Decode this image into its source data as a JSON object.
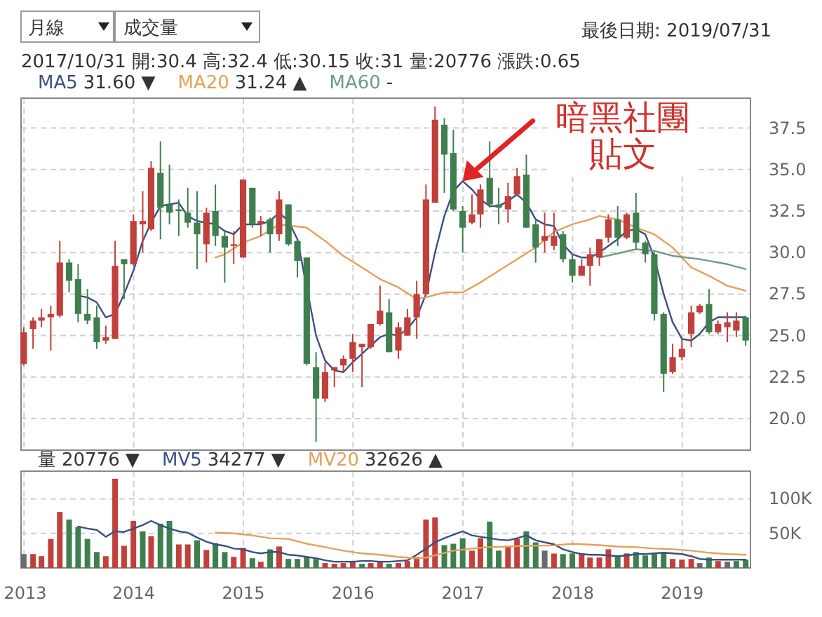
{
  "chart_data": [
    {
      "type": "candlestick",
      "legend": "top",
      "grid": true,
      "tick_labels": "y",
      "xlim": [
        "2012-12-22",
        "2019-08-16"
      ],
      "ylim": [
        18.1,
        39.3
      ],
      "xticks": [
        "2013",
        "2014",
        "2015",
        "2016",
        "2017",
        "2018",
        "2019"
      ],
      "yticks": [
        {
          "value": 20,
          "label": "20.0"
        },
        22.5,
        {
          "value": 25,
          "label": "25.0"
        },
        27.5,
        {
          "value": 30,
          "label": "30.0"
        },
        32.5,
        {
          "value": 35,
          "label": "35.0"
        },
        37.5
      ],
      "x": [
        "2012-12-31",
        "2013-01-31",
        "2013-02-28",
        "2013-03-31",
        "2013-04-30",
        "2013-05-31",
        "2013-06-30",
        "2013-07-31",
        "2013-08-31",
        "2013-09-30",
        "2013-10-31",
        "2013-11-30",
        "2013-12-31",
        "2014-01-31",
        "2014-02-28",
        "2014-03-31",
        "2014-04-30",
        "2014-05-31",
        "2014-06-30",
        "2014-07-31",
        "2014-08-31",
        "2014-09-30",
        "2014-10-31",
        "2014-11-30",
        "2014-12-31",
        "2015-01-31",
        "2015-02-28",
        "2015-03-31",
        "2015-04-30",
        "2015-05-31",
        "2015-06-30",
        "2015-07-31",
        "2015-08-31",
        "2015-09-30",
        "2015-10-31",
        "2015-11-30",
        "2015-12-31",
        "2016-01-31",
        "2016-02-29",
        "2016-03-31",
        "2016-04-30",
        "2016-05-31",
        "2016-06-30",
        "2016-07-31",
        "2016-08-31",
        "2016-09-30",
        "2016-10-31",
        "2016-11-30",
        "2016-12-31",
        "2017-01-31",
        "2017-02-28",
        "2017-03-31",
        "2017-04-30",
        "2017-05-31",
        "2017-06-30",
        "2017-07-31",
        "2017-08-31",
        "2017-09-30",
        "2017-10-31",
        "2017-11-30",
        "2017-12-31",
        "2018-01-31",
        "2018-02-28",
        "2018-03-31",
        "2018-04-30",
        "2018-05-31",
        "2018-06-30",
        "2018-07-31",
        "2018-08-31",
        "2018-09-30",
        "2018-10-31",
        "2018-11-30",
        "2018-12-31",
        "2019-01-31",
        "2019-02-28",
        "2019-03-31",
        "2019-04-30",
        "2019-05-31",
        "2019-06-30",
        "2019-07-31"
      ],
      "ohlc": [
        [
          23.3,
          25.5,
          23.2,
          25.2
        ],
        [
          25.4,
          26.1,
          24.2,
          25.9
        ],
        [
          25.9,
          26.6,
          25.5,
          26.1
        ],
        [
          26.1,
          26.8,
          24.1,
          26.3
        ],
        [
          26.2,
          30.7,
          26.1,
          29.4
        ],
        [
          29.4,
          29.6,
          27.6,
          28.3
        ],
        [
          28.4,
          29.3,
          25.8,
          26.3
        ],
        [
          26.3,
          27.8,
          25.7,
          25.9
        ],
        [
          26.1,
          26.8,
          24.2,
          24.6
        ],
        [
          24.7,
          25.6,
          24.5,
          24.9
        ],
        [
          24.8,
          30.7,
          24.8,
          29.2
        ],
        [
          29.6,
          29.6,
          27.2,
          29.3
        ],
        [
          29.3,
          32.3,
          29.2,
          31.9
        ],
        [
          31.7,
          33.7,
          30.0,
          31.9
        ],
        [
          31.4,
          35.5,
          31.3,
          35.1
        ],
        [
          34.8,
          36.7,
          30.8,
          32.7
        ],
        [
          32.9,
          35.3,
          31.7,
          32.4
        ],
        [
          32.6,
          33.2,
          31.0,
          32.5
        ],
        [
          32.4,
          33.9,
          31.5,
          31.8
        ],
        [
          31.8,
          33.7,
          29.0,
          31.1
        ],
        [
          30.5,
          32.7,
          29.4,
          32.4
        ],
        [
          32.5,
          34.1,
          30.4,
          31.0
        ],
        [
          31.0,
          31.3,
          28.2,
          30.3
        ],
        [
          30.4,
          31.3,
          29.3,
          30.5
        ],
        [
          29.7,
          34.4,
          29.7,
          34.4
        ],
        [
          33.9,
          33.9,
          31.5,
          31.7
        ],
        [
          31.7,
          32.2,
          31.0,
          31.9
        ],
        [
          32.0,
          32.1,
          30.0,
          31.1
        ],
        [
          31.1,
          33.7,
          30.7,
          33.2
        ],
        [
          32.9,
          32.9,
          30.4,
          30.5
        ],
        [
          30.7,
          30.7,
          28.5,
          29.5
        ],
        [
          29.7,
          29.7,
          23.2,
          23.3
        ],
        [
          23.1,
          24.0,
          18.6,
          21.2
        ],
        [
          21.2,
          23.4,
          21.0,
          22.8
        ],
        [
          22.9,
          23.1,
          21.9,
          23.1
        ],
        [
          23.2,
          23.8,
          22.8,
          23.6
        ],
        [
          23.6,
          25.1,
          22.8,
          24.6
        ],
        [
          24.3,
          24.5,
          21.9,
          24.5
        ],
        [
          24.3,
          25.7,
          24.2,
          25.7
        ],
        [
          25.7,
          28.0,
          25.6,
          26.5
        ],
        [
          26.4,
          27.2,
          24.0,
          24.0
        ],
        [
          24.1,
          25.8,
          23.6,
          25.5
        ],
        [
          25.0,
          26.6,
          25.0,
          26.1
        ],
        [
          26.1,
          28.3,
          24.8,
          27.5
        ],
        [
          27.5,
          34.1,
          27.5,
          33.2
        ],
        [
          33.0,
          38.8,
          33.0,
          38.0
        ],
        [
          37.7,
          38.1,
          33.6,
          35.9
        ],
        [
          36.0,
          37.4,
          32.5,
          32.6
        ],
        [
          32.5,
          32.8,
          30.0,
          31.5
        ],
        [
          31.8,
          33.5,
          31.7,
          32.3
        ],
        [
          32.3,
          34.1,
          31.5,
          33.8
        ],
        [
          34.5,
          36.7,
          32.7,
          32.9
        ],
        [
          32.9,
          33.9,
          31.7,
          32.7
        ],
        [
          32.6,
          34.2,
          31.8,
          33.4
        ],
        [
          33.5,
          35.1,
          33.4,
          34.6
        ],
        [
          34.7,
          35.9,
          31.5,
          31.5
        ],
        [
          31.7,
          32.0,
          29.4,
          30.3
        ],
        [
          30.7,
          32.4,
          30.0,
          31.0
        ],
        [
          30.4,
          32.4,
          30.15,
          31
        ],
        [
          31.1,
          31.3,
          29.4,
          29.6
        ],
        [
          29.6,
          29.9,
          28.2,
          28.6
        ],
        [
          28.6,
          29.6,
          28.6,
          29.2
        ],
        [
          29.2,
          30.3,
          28.0,
          29.9
        ],
        [
          29.7,
          30.8,
          29.2,
          30.8
        ],
        [
          30.9,
          32.3,
          30.6,
          32.0
        ],
        [
          32.0,
          32.8,
          30.4,
          30.9
        ],
        [
          30.9,
          32.4,
          30.8,
          32.3
        ],
        [
          32.4,
          33.6,
          30.2,
          30.6
        ],
        [
          30.6,
          30.7,
          29.4,
          29.9
        ],
        [
          29.9,
          30.0,
          25.9,
          26.3
        ],
        [
          26.3,
          26.4,
          21.6,
          22.7
        ],
        [
          22.8,
          24.5,
          22.7,
          23.7
        ],
        [
          23.7,
          24.8,
          23.5,
          24.2
        ],
        [
          25.1,
          26.8,
          24.3,
          26.4
        ],
        [
          26.4,
          26.9,
          26.3,
          26.8
        ],
        [
          26.9,
          27.8,
          25.1,
          25.2
        ],
        [
          25.2,
          25.9,
          25.1,
          25.7
        ],
        [
          25.5,
          26.4,
          24.6,
          25.8
        ],
        [
          25.3,
          26.4,
          24.9,
          25.9
        ],
        [
          26.1,
          26.2,
          24.4,
          24.7
        ]
      ],
      "colors": [
        "#c0403c",
        "#c0403c",
        "#c0403c",
        "#c0403c",
        "#c0403c",
        "#3f7f4f",
        "#3f7f4f",
        "#3f7f4f",
        "#3f7f4f",
        "#c0403c",
        "#c0403c",
        "#3f7f4f",
        "#c0403c",
        "#c0403c",
        "#c0403c",
        "#3f7f4f",
        "#3f7f4f",
        "#3f7f4f",
        "#3f7f4f",
        "#3f7f4f",
        "#c0403c",
        "#3f7f4f",
        "#3f7f4f",
        "#c0403c",
        "#c0403c",
        "#3f7f4f",
        "#c0403c",
        "#3f7f4f",
        "#c0403c",
        "#3f7f4f",
        "#3f7f4f",
        "#3f7f4f",
        "#3f7f4f",
        "#c0403c",
        "#c0403c",
        "#c0403c",
        "#c0403c",
        "#c0403c",
        "#c0403c",
        "#c0403c",
        "#3f7f4f",
        "#c0403c",
        "#c0403c",
        "#c0403c",
        "#c0403c",
        "#c0403c",
        "#3f7f4f",
        "#3f7f4f",
        "#3f7f4f",
        "#c0403c",
        "#c0403c",
        "#3f7f4f",
        "#3f7f4f",
        "#c0403c",
        "#c0403c",
        "#3f7f4f",
        "#3f7f4f",
        "#c0403c",
        "#c0403c",
        "#3f7f4f",
        "#3f7f4f",
        "#c0403c",
        "#c0403c",
        "#c0403c",
        "#c0403c",
        "#3f7f4f",
        "#c0403c",
        "#3f7f4f",
        "#3f7f4f",
        "#3f7f4f",
        "#3f7f4f",
        "#c0403c",
        "#c0403c",
        "#c0403c",
        "#c0403c",
        "#3f7f4f",
        "#c0403c",
        "#c0403c",
        "#c0403c",
        "#3f7f4f"
      ],
      "series": [
        {
          "name": "MA5",
          "type": "line",
          "color": "#3c5080",
          "x": [
            "2013-06-30",
            "2013-07-31",
            "2013-08-31",
            "2013-09-30",
            "2013-10-31",
            "2013-11-30",
            "2013-12-31",
            "2014-01-31",
            "2014-02-28",
            "2014-03-31",
            "2014-04-30",
            "2014-05-31",
            "2014-06-30",
            "2014-07-31",
            "2014-08-31",
            "2014-09-30",
            "2014-10-31",
            "2014-11-30",
            "2014-12-31",
            "2015-01-31",
            "2015-02-28",
            "2015-03-31",
            "2015-04-30",
            "2015-05-31",
            "2015-06-30",
            "2015-08-31",
            "2015-09-30",
            "2015-10-31",
            "2015-11-30",
            "2015-12-31",
            "2016-01-31",
            "2016-02-29",
            "2016-03-31",
            "2016-04-30",
            "2016-05-31",
            "2016-06-30",
            "2016-07-31",
            "2016-08-31",
            "2016-09-30",
            "2016-10-31",
            "2016-11-30",
            "2016-12-31",
            "2017-01-31",
            "2017-02-28",
            "2017-03-31",
            "2017-04-30",
            "2017-05-31",
            "2017-06-30",
            "2017-07-31",
            "2017-08-31",
            "2017-09-30",
            "2017-10-31",
            "2017-11-30",
            "2017-12-31",
            "2018-01-31",
            "2018-02-28",
            "2018-03-31",
            "2018-04-30",
            "2018-05-31",
            "2018-06-30",
            "2018-07-31",
            "2018-08-31",
            "2018-09-30",
            "2018-10-31",
            "2018-11-30",
            "2018-12-31",
            "2019-01-31",
            "2019-02-28",
            "2019-03-31",
            "2019-04-30",
            "2019-05-31",
            "2019-06-30",
            "2019-07-31"
          ],
          "values": [
            27.4,
            27.3,
            27.0,
            26.1,
            26.3,
            27.5,
            28.9,
            30.7,
            31.8,
            32.8,
            32.9,
            33.0,
            32.2,
            31.9,
            31.8,
            31.7,
            31.3,
            31.1,
            31.7,
            31.7,
            31.7,
            31.9,
            32.4,
            31.9,
            30.8,
            25.0,
            23.5,
            22.9,
            22.8,
            23.4,
            23.9,
            24.4,
            24.9,
            25.1,
            25.0,
            25.4,
            26.1,
            27.5,
            30.0,
            32.2,
            33.7,
            34.3,
            33.8,
            33.2,
            32.8,
            32.8,
            33.1,
            33.5,
            33.0,
            32.0,
            31.7,
            31.6,
            30.5,
            29.9,
            29.7,
            29.7,
            30.0,
            30.4,
            30.8,
            31.3,
            31.4,
            31.1,
            29.7,
            27.5,
            25.8,
            24.8,
            24.7,
            25.1,
            25.8,
            26.1,
            26.1,
            26.1,
            26.1
          ]
        },
        {
          "name": "MA20",
          "type": "line",
          "color": "#e3a15b",
          "x": [
            "2014-09-30",
            "2014-10-31",
            "2014-12-31",
            "2015-02-28",
            "2015-04-30",
            "2015-07-31",
            "2015-09-30",
            "2015-11-30",
            "2016-01-31",
            "2016-03-31",
            "2016-05-31",
            "2016-07-31",
            "2016-08-31",
            "2016-10-31",
            "2016-12-31",
            "2017-02-28",
            "2017-04-30",
            "2017-06-30",
            "2017-08-31",
            "2017-10-31",
            "2017-12-31",
            "2018-02-28",
            "2018-03-31",
            "2018-05-31",
            "2018-07-31",
            "2018-09-30",
            "2018-11-30",
            "2019-01-31",
            "2019-03-31",
            "2019-05-31",
            "2019-07-31"
          ],
          "values": [
            29.7,
            29.9,
            30.6,
            31.0,
            31.7,
            31.5,
            30.7,
            29.8,
            29.1,
            28.4,
            27.9,
            27.2,
            27.3,
            27.6,
            27.6,
            28.2,
            28.9,
            29.6,
            30.3,
            31.24,
            31.7,
            32.0,
            32.2,
            32.0,
            31.5,
            31.1,
            30.3,
            29.1,
            28.6,
            28.0,
            27.7
          ]
        },
        {
          "name": "MA60",
          "type": "line",
          "color": "#6e9a86",
          "x": [
            "2018-03-31",
            "2018-07-31",
            "2018-09-30",
            "2018-11-30",
            "2019-02-28",
            "2019-05-31",
            "2019-07-31"
          ],
          "values": [
            29.7,
            30.2,
            30.1,
            29.8,
            29.6,
            29.3,
            29.0
          ]
        }
      ],
      "annotations": [
        "月線",
        "成交量",
        "最後日期: 2019/07/31",
        "2017/10/31 開:30.4 高:32.4 低:30.15 收:31 量:20776 漲跌:0.65",
        "31.60 ▼",
        "31.24 ▲",
        "-",
        {
          "text": "暗黑社團貼文",
          "x": "2016-12-31",
          "y": 34.3
        }
      ]
    },
    {
      "type": "bar",
      "legend": "top",
      "grid": true,
      "xlim": [
        "2012-12-22",
        "2019-08-16"
      ],
      "ylim": [
        0,
        140000
      ],
      "xticks": [
        "2013",
        "2014",
        "2015",
        "2016",
        "2017",
        "2018",
        "2019"
      ],
      "yticks": [
        {
          "value": 50000,
          "label": "50K"
        },
        {
          "value": 100000,
          "label": "100K"
        }
      ],
      "x": [
        "2012-12-31",
        "2013-01-31",
        "2013-02-28",
        "2013-03-31",
        "2013-04-30",
        "2013-05-31",
        "2013-06-30",
        "2013-07-31",
        "2013-08-31",
        "2013-09-30",
        "2013-10-31",
        "2013-11-30",
        "2013-12-31",
        "2014-01-31",
        "2014-02-28",
        "2014-03-31",
        "2014-04-30",
        "2014-05-31",
        "2014-06-30",
        "2014-07-31",
        "2014-08-31",
        "2014-09-30",
        "2014-10-31",
        "2014-11-30",
        "2014-12-31",
        "2015-01-31",
        "2015-02-28",
        "2015-03-31",
        "2015-04-30",
        "2015-05-31",
        "2015-06-30",
        "2015-07-31",
        "2015-08-31",
        "2015-09-30",
        "2015-10-31",
        "2015-11-30",
        "2015-12-31",
        "2016-01-31",
        "2016-02-29",
        "2016-03-31",
        "2016-04-30",
        "2016-05-31",
        "2016-06-30",
        "2016-07-31",
        "2016-08-31",
        "2016-09-30",
        "2016-10-31",
        "2016-11-30",
        "2016-12-31",
        "2017-01-31",
        "2017-02-28",
        "2017-03-31",
        "2017-04-30",
        "2017-05-31",
        "2017-06-30",
        "2017-07-31",
        "2017-08-31",
        "2017-09-30",
        "2017-10-31",
        "2017-11-30",
        "2017-12-31",
        "2018-01-31",
        "2018-02-28",
        "2018-03-31",
        "2018-04-30",
        "2018-05-31",
        "2018-06-30",
        "2018-07-31",
        "2018-08-31",
        "2018-09-30",
        "2018-10-31",
        "2018-11-30",
        "2018-12-31",
        "2019-01-31",
        "2019-02-28",
        "2019-03-31",
        "2019-04-30",
        "2019-05-31",
        "2019-06-30",
        "2019-07-31"
      ],
      "series": [
        {
          "name": "量",
          "type": "bar",
          "values": [
            20000,
            20000,
            17000,
            42000,
            81000,
            70000,
            59000,
            42000,
            23000,
            17000,
            129000,
            32000,
            68000,
            53000,
            46000,
            64000,
            68000,
            34000,
            34000,
            40000,
            26000,
            36000,
            23000,
            16000,
            29000,
            14000,
            9000,
            27000,
            31000,
            13000,
            13000,
            16000,
            13000,
            7000,
            6000,
            7000,
            9000,
            6000,
            7000,
            9000,
            6000,
            7000,
            10000,
            16000,
            70000,
            73000,
            33000,
            35000,
            43000,
            25000,
            43000,
            67000,
            25000,
            31000,
            42000,
            53000,
            37000,
            25000,
            20776,
            20000,
            21000,
            21000,
            15000,
            15000,
            27000,
            18000,
            21000,
            23000,
            18000,
            21000,
            23000,
            13000,
            12000,
            13000,
            7000,
            15000,
            10000,
            9000,
            10000,
            12000
          ],
          "colors": [
            "#6b6b6b",
            "#c0403c",
            "#c0403c",
            "#c0403c",
            "#c0403c",
            "#3f7f4f",
            "#3f7f4f",
            "#3f7f4f",
            "#3f7f4f",
            "#c0403c",
            "#c0403c",
            "#c0403c",
            "#c0403c",
            "#3f7f4f",
            "#c0403c",
            "#3f7f4f",
            "#3f7f4f",
            "#c0403c",
            "#c0403c",
            "#3f7f4f",
            "#c0403c",
            "#3f7f4f",
            "#3f7f4f",
            "#c0403c",
            "#c0403c",
            "#3f7f4f",
            "#c0403c",
            "#3f7f4f",
            "#c0403c",
            "#3f7f4f",
            "#3f7f4f",
            "#3f7f4f",
            "#3f7f4f",
            "#c0403c",
            "#c0403c",
            "#c0403c",
            "#c0403c",
            "#3f7f4f",
            "#c0403c",
            "#c0403c",
            "#3f7f4f",
            "#c0403c",
            "#c0403c",
            "#c0403c",
            "#c0403c",
            "#c0403c",
            "#3f7f4f",
            "#3f7f4f",
            "#3f7f4f",
            "#c0403c",
            "#c0403c",
            "#3f7f4f",
            "#3f7f4f",
            "#c0403c",
            "#c0403c",
            "#3f7f4f",
            "#3f7f4f",
            "#6b6b6b",
            "#c0403c",
            "#3f7f4f",
            "#3f7f4f",
            "#c0403c",
            "#c0403c",
            "#c0403c",
            "#c0403c",
            "#3f7f4f",
            "#c0403c",
            "#3f7f4f",
            "#3f7f4f",
            "#3f7f4f",
            "#3f7f4f",
            "#c0403c",
            "#c0403c",
            "#c0403c",
            "#6b6b6b",
            "#3f7f4f",
            "#c0403c",
            "#6b6b6b",
            "#3f7f4f",
            "#3f7f4f"
          ]
        },
        {
          "name": "MV5",
          "type": "line",
          "color": "#3c5080",
          "x": [
            "2013-06-30",
            "2013-07-31",
            "2013-08-31",
            "2013-09-30",
            "2013-10-31",
            "2013-11-30",
            "2013-12-31",
            "2014-01-31",
            "2014-02-28",
            "2014-03-31",
            "2014-04-30",
            "2014-05-31",
            "2014-06-30",
            "2014-07-31",
            "2014-08-31",
            "2014-09-30",
            "2014-10-31",
            "2014-11-30",
            "2014-12-31",
            "2015-01-31",
            "2015-02-28",
            "2015-03-31",
            "2015-04-30",
            "2015-05-31",
            "2015-06-30",
            "2015-07-31",
            "2015-08-31",
            "2015-09-30",
            "2015-10-31",
            "2015-11-30",
            "2015-12-31",
            "2016-01-31",
            "2016-02-29",
            "2016-03-31",
            "2016-04-30",
            "2016-05-31",
            "2016-06-30",
            "2016-07-31",
            "2016-08-31",
            "2016-09-30",
            "2016-10-31",
            "2016-11-30",
            "2016-12-31",
            "2017-01-31",
            "2017-02-28",
            "2017-03-31",
            "2017-04-30",
            "2017-05-31",
            "2017-06-30",
            "2017-07-31",
            "2017-08-31",
            "2017-09-30",
            "2017-10-31",
            "2017-11-30",
            "2017-12-31",
            "2018-01-31",
            "2018-02-28",
            "2018-03-31",
            "2018-04-30",
            "2018-05-31",
            "2018-06-30",
            "2018-07-31",
            "2018-08-31",
            "2018-09-30",
            "2018-10-31",
            "2018-11-30",
            "2018-12-31",
            "2019-01-31",
            "2019-02-28",
            "2019-03-31",
            "2019-04-30",
            "2019-05-31",
            "2019-06-30",
            "2019-07-31"
          ],
          "values": [
            60000,
            57000,
            55000,
            45000,
            53000,
            52000,
            57000,
            62000,
            68000,
            62000,
            57000,
            53000,
            51000,
            44000,
            38000,
            34000,
            32000,
            28000,
            27000,
            23000,
            21000,
            23000,
            23000,
            19000,
            18000,
            16000,
            14000,
            11000,
            9000,
            9000,
            9000,
            10000,
            10000,
            9000,
            9000,
            10000,
            11000,
            19000,
            28000,
            37000,
            43000,
            48000,
            53000,
            47000,
            45000,
            43000,
            41000,
            40000,
            43000,
            47000,
            40000,
            37000,
            34277,
            27000,
            23000,
            20000,
            19000,
            19000,
            18000,
            17000,
            18000,
            20000,
            20000,
            21000,
            22000,
            21000,
            20000,
            17000,
            13000,
            12000,
            12000,
            12000,
            12000,
            12000
          ]
        },
        {
          "name": "MV20",
          "type": "line",
          "color": "#e3a15b",
          "x": [
            "2014-09-30",
            "2014-11-30",
            "2015-01-31",
            "2015-03-31",
            "2015-05-31",
            "2015-07-31",
            "2015-09-30",
            "2015-11-30",
            "2016-01-31",
            "2016-03-31",
            "2016-05-31",
            "2016-07-31",
            "2016-08-31",
            "2016-11-30",
            "2017-01-31",
            "2017-03-31",
            "2017-05-31",
            "2017-07-31",
            "2017-10-31",
            "2017-12-31",
            "2018-03-31",
            "2018-05-31",
            "2018-07-31",
            "2018-09-30",
            "2018-11-30",
            "2019-01-31",
            "2019-03-31",
            "2019-05-31",
            "2019-07-31"
          ],
          "values": [
            51000,
            50000,
            47000,
            43000,
            42000,
            35000,
            30000,
            25000,
            21000,
            19000,
            16000,
            14000,
            15000,
            25000,
            28000,
            30000,
            31000,
            32000,
            32626,
            35000,
            33000,
            31000,
            30000,
            28000,
            27000,
            25000,
            22000,
            20000,
            19000
          ]
        }
      ],
      "annotations": [
        "20776 ▼",
        "34277 ▼",
        "32626 ▲"
      ]
    }
  ]
}
